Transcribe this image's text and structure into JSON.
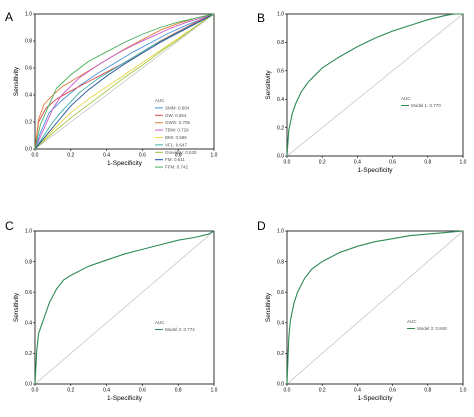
{
  "chart_data": [
    {
      "type": "line",
      "panel_label": "A",
      "xlabel": "1-Specificity",
      "ylabel": "Sensitivity",
      "xlim": [
        0,
        1
      ],
      "ylim": [
        0,
        1
      ],
      "xticks": [
        "0.0",
        "0.2",
        "0.4",
        "0.6",
        "0.8",
        "1.0"
      ],
      "yticks": [
        "0.0",
        "0.2",
        "0.4",
        "0.6",
        "0.8",
        "1.0"
      ],
      "legend_title": "AUC",
      "legend_position": "bottom-right",
      "reference_line": true,
      "series": [
        {
          "name": "SMM",
          "auc": "0.664",
          "color": "#4a90d9",
          "x": [
            0,
            0.03,
            0.08,
            0.15,
            0.25,
            0.35,
            0.45,
            0.55,
            0.65,
            0.75,
            0.85,
            0.93,
            1
          ],
          "y": [
            0,
            0.12,
            0.27,
            0.36,
            0.47,
            0.56,
            0.64,
            0.72,
            0.79,
            0.86,
            0.92,
            0.96,
            1
          ]
        },
        {
          "name": "GW",
          "auc": "0.654",
          "color": "#d94a4a",
          "x": [
            0,
            0.02,
            0.06,
            0.12,
            0.2,
            0.3,
            0.4,
            0.5,
            0.6,
            0.7,
            0.8,
            0.9,
            1
          ],
          "y": [
            0,
            0.2,
            0.3,
            0.37,
            0.43,
            0.5,
            0.57,
            0.64,
            0.72,
            0.8,
            0.87,
            0.94,
            1
          ]
        },
        {
          "name": "GWG",
          "auc": "0.705",
          "color": "#e07b39",
          "x": [
            0,
            0.02,
            0.05,
            0.1,
            0.15,
            0.2,
            0.3,
            0.4,
            0.5,
            0.6,
            0.7,
            0.8,
            0.9,
            1
          ],
          "y": [
            0,
            0.22,
            0.33,
            0.4,
            0.46,
            0.5,
            0.58,
            0.66,
            0.74,
            0.81,
            0.88,
            0.93,
            0.97,
            1
          ]
        },
        {
          "name": "TBW",
          "auc": "0.729",
          "color": "#c85ac8",
          "x": [
            0,
            0.05,
            0.1,
            0.15,
            0.25,
            0.35,
            0.45,
            0.55,
            0.65,
            0.75,
            0.85,
            0.93,
            1
          ],
          "y": [
            0,
            0.15,
            0.3,
            0.4,
            0.53,
            0.62,
            0.7,
            0.77,
            0.83,
            0.89,
            0.94,
            0.97,
            1
          ]
        },
        {
          "name": "BMI",
          "auc": "0.586",
          "color": "#e8d54a",
          "x": [
            0,
            0.05,
            0.1,
            0.2,
            0.3,
            0.4,
            0.5,
            0.6,
            0.7,
            0.8,
            0.9,
            1
          ],
          "y": [
            0,
            0.07,
            0.14,
            0.27,
            0.37,
            0.46,
            0.55,
            0.64,
            0.73,
            0.82,
            0.91,
            1
          ]
        },
        {
          "name": "VFL",
          "auc": "0.647",
          "color": "#3bb0a8",
          "x": [
            0,
            0.05,
            0.1,
            0.15,
            0.25,
            0.35,
            0.45,
            0.55,
            0.65,
            0.75,
            0.85,
            0.93,
            1
          ],
          "y": [
            0,
            0.1,
            0.2,
            0.28,
            0.42,
            0.52,
            0.6,
            0.68,
            0.76,
            0.83,
            0.9,
            0.95,
            1
          ]
        },
        {
          "name": "Gravidity",
          "auc": "0.530",
          "color": "#9ec43a",
          "x": [
            0,
            0.1,
            0.2,
            0.3,
            0.4,
            0.5,
            0.6,
            0.7,
            0.8,
            0.9,
            1
          ],
          "y": [
            0,
            0.12,
            0.23,
            0.33,
            0.43,
            0.53,
            0.62,
            0.72,
            0.81,
            0.91,
            1
          ]
        },
        {
          "name": "FM",
          "auc": "0.611",
          "color": "#1f4e9c",
          "x": [
            0,
            0.05,
            0.1,
            0.2,
            0.3,
            0.4,
            0.5,
            0.6,
            0.7,
            0.8,
            0.9,
            1
          ],
          "y": [
            0,
            0.08,
            0.16,
            0.32,
            0.44,
            0.54,
            0.63,
            0.71,
            0.79,
            0.86,
            0.93,
            1
          ]
        },
        {
          "name": "FFM",
          "auc": "0.742",
          "color": "#44b05a",
          "x": [
            0,
            0.03,
            0.08,
            0.12,
            0.2,
            0.3,
            0.4,
            0.5,
            0.6,
            0.7,
            0.8,
            0.9,
            1
          ],
          "y": [
            0,
            0.18,
            0.33,
            0.45,
            0.55,
            0.65,
            0.72,
            0.79,
            0.85,
            0.9,
            0.94,
            0.97,
            1
          ]
        }
      ]
    },
    {
      "type": "line",
      "panel_label": "B",
      "xlabel": "1-Specificity",
      "ylabel": "Sensitivity",
      "xlim": [
        0,
        1
      ],
      "ylim": [
        0,
        1
      ],
      "xticks": [
        "0.0",
        "0.2",
        "0.4",
        "0.6",
        "0.8",
        "1.0"
      ],
      "yticks": [
        "0.0",
        "0.2",
        "0.4",
        "0.6",
        "0.8",
        "1.0"
      ],
      "legend_title": "AUC",
      "legend_position": "center-right",
      "reference_line": true,
      "series": [
        {
          "name": "Model 1",
          "auc": "0.770",
          "color": "#2e8b57",
          "x": [
            0,
            0.01,
            0.03,
            0.05,
            0.08,
            0.12,
            0.16,
            0.2,
            0.3,
            0.4,
            0.5,
            0.6,
            0.7,
            0.8,
            0.9,
            0.95,
            1
          ],
          "y": [
            0,
            0.18,
            0.3,
            0.37,
            0.45,
            0.52,
            0.57,
            0.62,
            0.7,
            0.77,
            0.83,
            0.88,
            0.92,
            0.96,
            0.99,
            1,
            1
          ]
        }
      ]
    },
    {
      "type": "line",
      "panel_label": "C",
      "xlabel": "1-Specificity",
      "ylabel": "Sensitivity",
      "xlim": [
        0,
        1
      ],
      "ylim": [
        0,
        1
      ],
      "xticks": [
        "0.0",
        "0.2",
        "0.4",
        "0.6",
        "0.8",
        "1.0"
      ],
      "yticks": [
        "0.0",
        "0.2",
        "0.4",
        "0.6",
        "0.8",
        "1.0"
      ],
      "legend_title": "AUC",
      "legend_position": "center-right",
      "reference_line": true,
      "series": [
        {
          "name": "Model 2",
          "auc": "0.774",
          "color": "#2e8b57",
          "x": [
            0,
            0.01,
            0.02,
            0.05,
            0.08,
            0.12,
            0.16,
            0.2,
            0.3,
            0.4,
            0.5,
            0.6,
            0.7,
            0.8,
            0.9,
            0.97,
            1
          ],
          "y": [
            0,
            0.22,
            0.33,
            0.43,
            0.53,
            0.62,
            0.68,
            0.71,
            0.77,
            0.81,
            0.85,
            0.88,
            0.91,
            0.94,
            0.96,
            0.98,
            1
          ]
        }
      ]
    },
    {
      "type": "line",
      "panel_label": "D",
      "xlabel": "1-Specificity",
      "ylabel": "Sensitivity",
      "xlim": [
        0,
        1
      ],
      "ylim": [
        0,
        1
      ],
      "xticks": [
        "0.0",
        "0.2",
        "0.4",
        "0.6",
        "0.8",
        "1.0"
      ],
      "yticks": [
        "0.0",
        "0.2",
        "0.4",
        "0.6",
        "0.8",
        "1.0"
      ],
      "legend_title": "AUC",
      "legend_position": "center-right",
      "reference_line": true,
      "series": [
        {
          "name": "Model 3",
          "auc": "0.848",
          "color": "#2e8b57",
          "x": [
            0,
            0.01,
            0.02,
            0.04,
            0.06,
            0.1,
            0.14,
            0.2,
            0.3,
            0.4,
            0.5,
            0.6,
            0.7,
            0.8,
            0.9,
            1
          ],
          "y": [
            0,
            0.3,
            0.42,
            0.53,
            0.6,
            0.69,
            0.75,
            0.8,
            0.86,
            0.9,
            0.93,
            0.95,
            0.97,
            0.98,
            0.99,
            1
          ]
        }
      ]
    }
  ]
}
